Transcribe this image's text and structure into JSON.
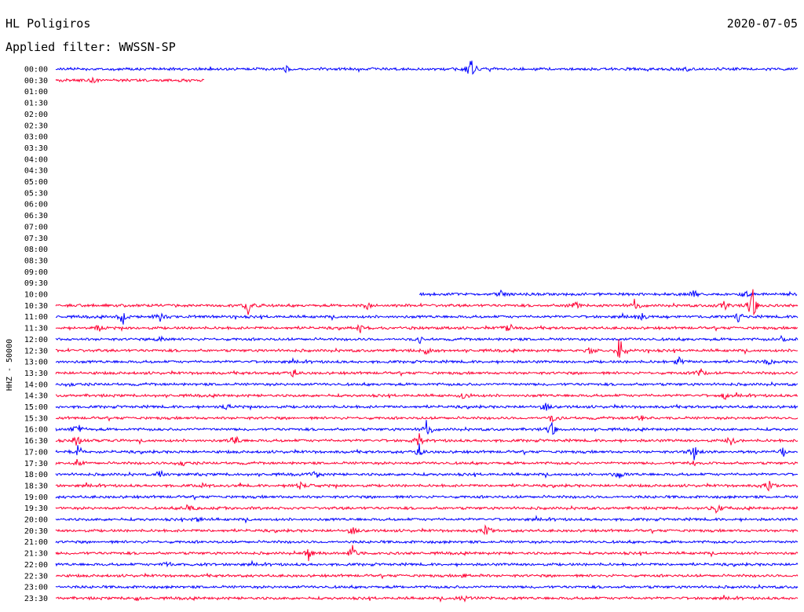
{
  "header": {
    "station": "HL Poligiros",
    "date": "2020-07-05",
    "filter": "Applied filter: WWSSN-SP"
  },
  "chart_data": {
    "type": "line",
    "title": "HL Poligiros",
    "subtitle": "Applied filter: WWSSN-SP",
    "ylabel": "HHZ - 50000",
    "colors": [
      "#0000ff",
      "#ff0033"
    ],
    "rows": [
      {
        "time": "00:00",
        "start": 0.0,
        "end": 1.0,
        "events": [
          [
            0.56,
            13
          ],
          [
            0.85,
            3
          ],
          [
            0.31,
            3
          ]
        ]
      },
      {
        "time": "00:30",
        "start": 0.0,
        "end": 0.2,
        "events": [
          [
            0.05,
            3
          ]
        ]
      },
      {
        "time": "01:00",
        "start": 0,
        "end": 0,
        "events": []
      },
      {
        "time": "01:30",
        "start": 0,
        "end": 0,
        "events": []
      },
      {
        "time": "02:00",
        "start": 0,
        "end": 0,
        "events": []
      },
      {
        "time": "02:30",
        "start": 0,
        "end": 0,
        "events": []
      },
      {
        "time": "03:00",
        "start": 0,
        "end": 0,
        "events": []
      },
      {
        "time": "03:30",
        "start": 0,
        "end": 0,
        "events": []
      },
      {
        "time": "04:00",
        "start": 0,
        "end": 0,
        "events": []
      },
      {
        "time": "04:30",
        "start": 0,
        "end": 0,
        "events": []
      },
      {
        "time": "05:00",
        "start": 0,
        "end": 0,
        "events": []
      },
      {
        "time": "05:30",
        "start": 0,
        "end": 0,
        "events": []
      },
      {
        "time": "06:00",
        "start": 0,
        "end": 0,
        "events": []
      },
      {
        "time": "06:30",
        "start": 0,
        "end": 0,
        "events": []
      },
      {
        "time": "07:00",
        "start": 0,
        "end": 0,
        "events": []
      },
      {
        "time": "07:30",
        "start": 0,
        "end": 0,
        "events": []
      },
      {
        "time": "08:00",
        "start": 0,
        "end": 0,
        "events": []
      },
      {
        "time": "08:30",
        "start": 0,
        "end": 0,
        "events": []
      },
      {
        "time": "09:00",
        "start": 0,
        "end": 0,
        "events": []
      },
      {
        "time": "09:30",
        "start": 0,
        "end": 0,
        "events": []
      },
      {
        "time": "10:00",
        "start": 0.49,
        "end": 1.0,
        "events": [
          [
            0.6,
            5
          ],
          [
            0.86,
            5
          ],
          [
            0.93,
            5
          ]
        ]
      },
      {
        "time": "10:30",
        "start": 0.0,
        "end": 1.0,
        "events": [
          [
            0.26,
            10
          ],
          [
            0.42,
            6
          ],
          [
            0.7,
            6
          ],
          [
            0.78,
            6
          ],
          [
            0.94,
            20
          ],
          [
            0.9,
            6
          ]
        ]
      },
      {
        "time": "11:00",
        "start": 0.0,
        "end": 1.0,
        "events": [
          [
            0.09,
            9
          ],
          [
            0.14,
            6
          ],
          [
            0.79,
            6
          ],
          [
            0.92,
            6
          ]
        ]
      },
      {
        "time": "11:30",
        "start": 0.0,
        "end": 1.0,
        "events": [
          [
            0.06,
            5
          ],
          [
            0.41,
            6
          ],
          [
            0.61,
            8
          ]
        ]
      },
      {
        "time": "12:00",
        "start": 0.0,
        "end": 1.0,
        "events": [
          [
            0.14,
            4
          ],
          [
            0.49,
            4
          ],
          [
            0.98,
            5
          ]
        ]
      },
      {
        "time": "12:30",
        "start": 0.0,
        "end": 1.0,
        "events": [
          [
            0.5,
            5
          ],
          [
            0.76,
            14
          ],
          [
            0.72,
            4
          ]
        ]
      },
      {
        "time": "13:00",
        "start": 0.0,
        "end": 1.0,
        "events": [
          [
            0.84,
            6
          ],
          [
            0.96,
            4
          ]
        ]
      },
      {
        "time": "13:30",
        "start": 0.0,
        "end": 1.0,
        "events": [
          [
            0.32,
            5
          ],
          [
            0.87,
            5
          ]
        ]
      },
      {
        "time": "14:00",
        "start": 0.0,
        "end": 1.0,
        "events": [
          [
            0.02,
            3
          ]
        ]
      },
      {
        "time": "14:30",
        "start": 0.0,
        "end": 1.0,
        "events": [
          [
            0.55,
            5
          ],
          [
            0.9,
            5
          ]
        ]
      },
      {
        "time": "15:00",
        "start": 0.0,
        "end": 1.0,
        "events": [
          [
            0.66,
            5
          ],
          [
            0.23,
            3
          ]
        ]
      },
      {
        "time": "15:30",
        "start": 0.0,
        "end": 1.0,
        "events": [
          [
            0.67,
            5
          ],
          [
            0.79,
            4
          ]
        ]
      },
      {
        "time": "16:00",
        "start": 0.0,
        "end": 1.0,
        "events": [
          [
            0.03,
            8
          ],
          [
            0.5,
            10
          ],
          [
            0.67,
            9
          ]
        ]
      },
      {
        "time": "16:30",
        "start": 0.0,
        "end": 1.0,
        "events": [
          [
            0.03,
            10
          ],
          [
            0.24,
            7
          ],
          [
            0.49,
            7
          ],
          [
            0.91,
            5
          ]
        ]
      },
      {
        "time": "17:00",
        "start": 0.0,
        "end": 1.0,
        "events": [
          [
            0.03,
            8
          ],
          [
            0.49,
            7
          ],
          [
            0.86,
            8
          ],
          [
            0.98,
            5
          ]
        ]
      },
      {
        "time": "17:30",
        "start": 0.0,
        "end": 1.0,
        "events": [
          [
            0.03,
            5
          ],
          [
            0.17,
            5
          ],
          [
            0.86,
            4
          ]
        ]
      },
      {
        "time": "18:00",
        "start": 0.0,
        "end": 1.0,
        "events": [
          [
            0.35,
            5
          ],
          [
            0.76,
            6
          ],
          [
            0.14,
            4
          ]
        ]
      },
      {
        "time": "18:30",
        "start": 0.0,
        "end": 1.0,
        "events": [
          [
            0.33,
            5
          ],
          [
            0.96,
            8
          ],
          [
            0.2,
            4
          ]
        ]
      },
      {
        "time": "19:00",
        "start": 0.0,
        "end": 1.0,
        "events": []
      },
      {
        "time": "19:30",
        "start": 0.0,
        "end": 1.0,
        "events": [
          [
            0.18,
            7
          ],
          [
            0.89,
            8
          ]
        ]
      },
      {
        "time": "20:00",
        "start": 0.0,
        "end": 1.0,
        "events": [
          [
            0.19,
            4
          ]
        ]
      },
      {
        "time": "20:30",
        "start": 0.0,
        "end": 1.0,
        "events": [
          [
            0.58,
            7
          ],
          [
            0.4,
            5
          ]
        ]
      },
      {
        "time": "21:00",
        "start": 0.0,
        "end": 1.0,
        "events": []
      },
      {
        "time": "21:30",
        "start": 0.0,
        "end": 1.0,
        "events": [
          [
            0.34,
            8
          ],
          [
            0.4,
            8
          ]
        ]
      },
      {
        "time": "22:00",
        "start": 0.0,
        "end": 1.0,
        "events": [
          [
            0.15,
            3
          ]
        ]
      },
      {
        "time": "22:30",
        "start": 0.0,
        "end": 1.0,
        "events": [
          [
            0.55,
            3
          ]
        ]
      },
      {
        "time": "23:00",
        "start": 0.0,
        "end": 1.0,
        "events": []
      },
      {
        "time": "23:30",
        "start": 0.0,
        "end": 1.0,
        "events": [
          [
            0.11,
            3
          ],
          [
            0.55,
            4
          ]
        ]
      }
    ]
  }
}
